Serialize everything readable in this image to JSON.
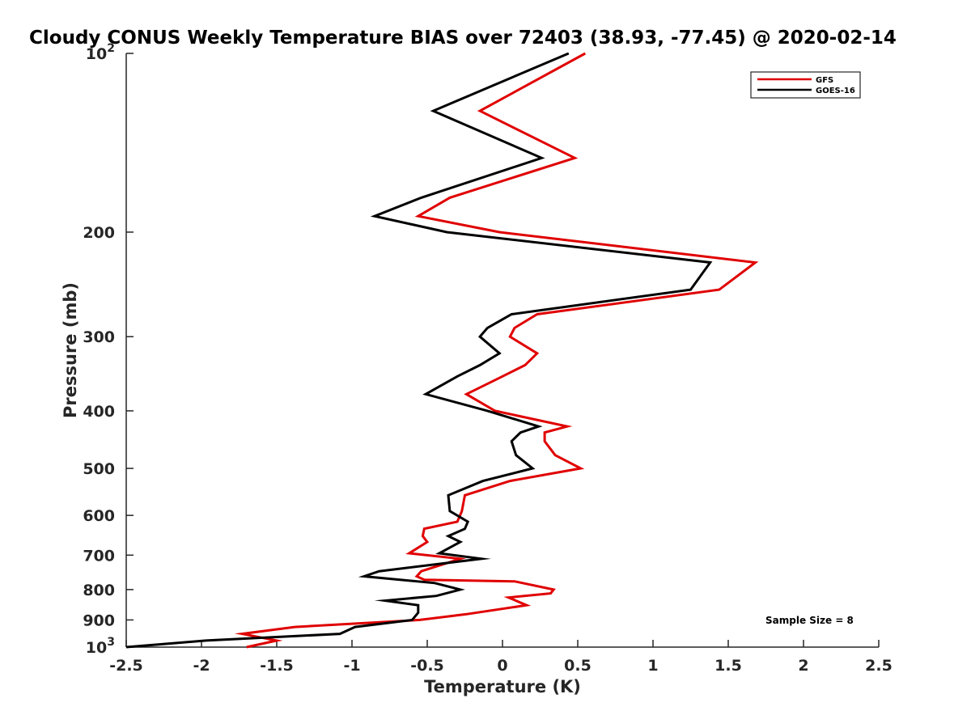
{
  "chart_data": {
    "type": "line",
    "title": "Cloudy CONUS Weekly Temperature BIAS over 72403 (38.93, -77.45) @ 2020-02-14",
    "xlabel": "Temperature (K)",
    "ylabel": "Pressure (mb)",
    "xlim": [
      -2.5,
      2.5
    ],
    "ylim": [
      1000,
      100
    ],
    "y_scale": "log",
    "y_reversed": true,
    "grid": false,
    "legend_position": "top-right",
    "x_ticks": [
      {
        "value": -2.5,
        "label": "-2.5"
      },
      {
        "value": -2,
        "label": "-2"
      },
      {
        "value": -1.5,
        "label": "-1.5"
      },
      {
        "value": -1,
        "label": "-1"
      },
      {
        "value": -0.5,
        "label": "-0.5"
      },
      {
        "value": 0,
        "label": "0"
      },
      {
        "value": 0.5,
        "label": "0.5"
      },
      {
        "value": 1,
        "label": "1"
      },
      {
        "value": 1.5,
        "label": "1.5"
      },
      {
        "value": 2,
        "label": "2"
      },
      {
        "value": 2.5,
        "label": "2.5"
      }
    ],
    "y_ticks": [
      {
        "value": 100,
        "base": "10",
        "exp": "2"
      },
      {
        "value": 200,
        "label": "200"
      },
      {
        "value": 300,
        "label": "300"
      },
      {
        "value": 400,
        "label": "400"
      },
      {
        "value": 500,
        "label": "500"
      },
      {
        "value": 600,
        "label": "600"
      },
      {
        "value": 700,
        "label": "700"
      },
      {
        "value": 800,
        "label": "800"
      },
      {
        "value": 900,
        "label": "900"
      },
      {
        "value": 1000,
        "base": "10",
        "exp": "3"
      }
    ],
    "annotation": "Sample Size = 8",
    "series": [
      {
        "name": "GFS",
        "color": "#e00000",
        "points": [
          [
            0.55,
            100
          ],
          [
            -0.15,
            125
          ],
          [
            0.48,
            150
          ],
          [
            -0.35,
            175
          ],
          [
            -0.56,
            188
          ],
          [
            -0.02,
            200
          ],
          [
            1.68,
            225
          ],
          [
            1.44,
            250
          ],
          [
            0.23,
            275
          ],
          [
            0.08,
            290
          ],
          [
            0.05,
            300
          ],
          [
            0.23,
            320
          ],
          [
            0.15,
            335
          ],
          [
            0.0,
            350
          ],
          [
            -0.24,
            375
          ],
          [
            -0.05,
            400
          ],
          [
            0.43,
            425
          ],
          [
            0.28,
            435
          ],
          [
            0.28,
            450
          ],
          [
            0.35,
            475
          ],
          [
            0.52,
            500
          ],
          [
            0.05,
            525
          ],
          [
            -0.25,
            555
          ],
          [
            -0.27,
            590
          ],
          [
            -0.3,
            615
          ],
          [
            -0.52,
            632
          ],
          [
            -0.53,
            650
          ],
          [
            -0.5,
            665
          ],
          [
            -0.62,
            695
          ],
          [
            -0.28,
            710
          ],
          [
            -0.54,
            745
          ],
          [
            -0.57,
            760
          ],
          [
            -0.52,
            770
          ],
          [
            0.08,
            775
          ],
          [
            0.34,
            800
          ],
          [
            0.32,
            812
          ],
          [
            0.04,
            825
          ],
          [
            0.16,
            850
          ],
          [
            -0.24,
            880
          ],
          [
            -0.55,
            900
          ],
          [
            -1.38,
            925
          ],
          [
            -1.73,
            950
          ],
          [
            -1.5,
            975
          ],
          [
            -1.7,
            1000
          ]
        ]
      },
      {
        "name": "GOES-16",
        "color": "#000000",
        "points": [
          [
            0.44,
            100
          ],
          [
            -0.46,
            125
          ],
          [
            0.26,
            150
          ],
          [
            -0.54,
            175
          ],
          [
            -0.85,
            188
          ],
          [
            -0.37,
            200
          ],
          [
            1.38,
            225
          ],
          [
            1.25,
            250
          ],
          [
            0.06,
            275
          ],
          [
            -0.1,
            290
          ],
          [
            -0.15,
            300
          ],
          [
            -0.02,
            320
          ],
          [
            -0.15,
            335
          ],
          [
            -0.3,
            350
          ],
          [
            -0.51,
            375
          ],
          [
            -0.1,
            400
          ],
          [
            0.24,
            425
          ],
          [
            0.12,
            435
          ],
          [
            0.06,
            450
          ],
          [
            0.09,
            475
          ],
          [
            0.2,
            500
          ],
          [
            -0.13,
            525
          ],
          [
            -0.36,
            555
          ],
          [
            -0.35,
            590
          ],
          [
            -0.23,
            615
          ],
          [
            -0.25,
            632
          ],
          [
            -0.36,
            650
          ],
          [
            -0.28,
            665
          ],
          [
            -0.42,
            695
          ],
          [
            -0.14,
            710
          ],
          [
            -0.82,
            745
          ],
          [
            -0.92,
            760
          ],
          [
            -0.45,
            780
          ],
          [
            -0.28,
            800
          ],
          [
            -0.44,
            820
          ],
          [
            -0.78,
            835
          ],
          [
            -0.56,
            850
          ],
          [
            -0.56,
            875
          ],
          [
            -0.6,
            900
          ],
          [
            -0.98,
            925
          ],
          [
            -1.08,
            950
          ],
          [
            -1.97,
            975
          ],
          [
            -2.5,
            1000
          ]
        ]
      }
    ]
  }
}
